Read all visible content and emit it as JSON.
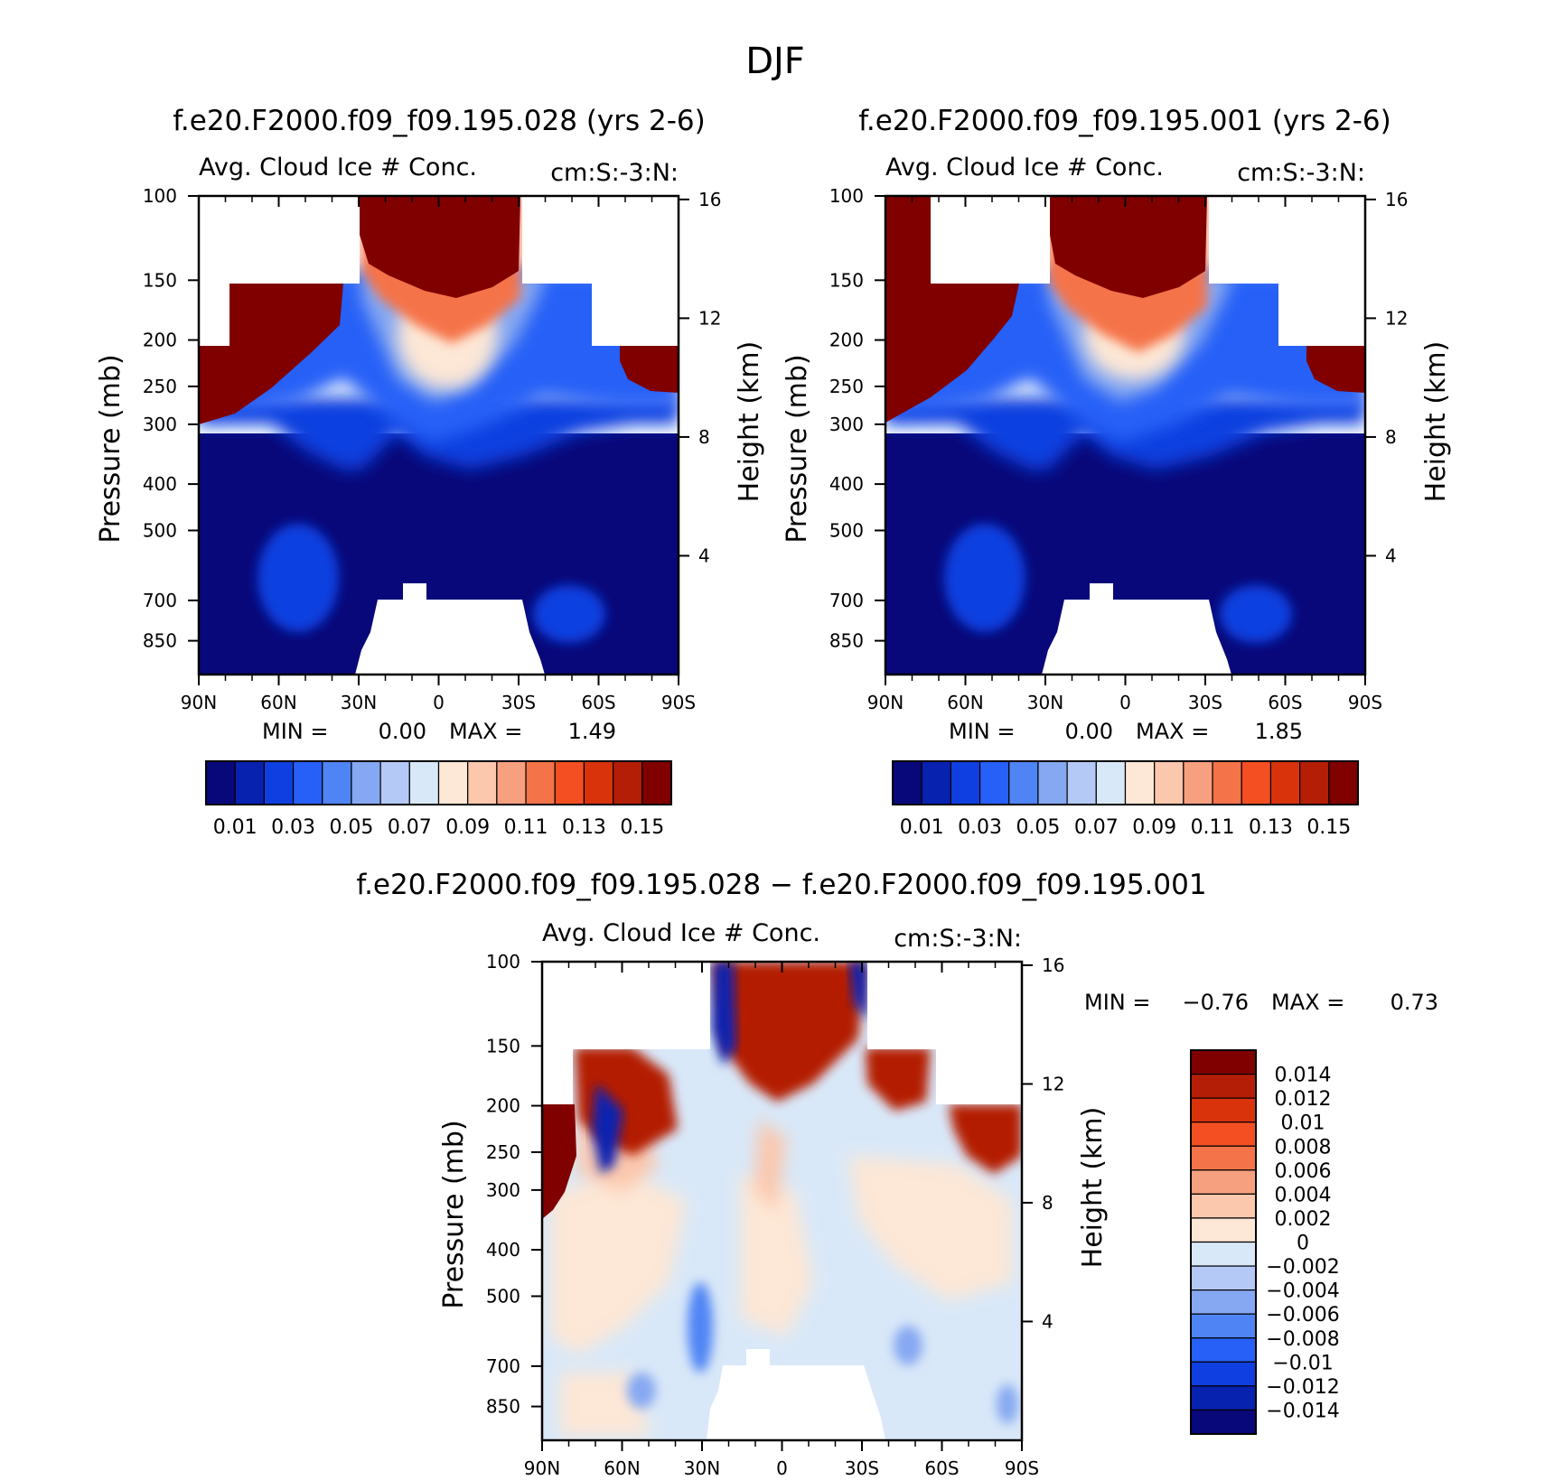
{
  "figure": {
    "title": "DJF"
  },
  "colors": {
    "abs_levels": [
      "#08087a",
      "#0822b0",
      "#0f3fe0",
      "#2760f7",
      "#4f84f5",
      "#86a8f2",
      "#b4c9f5",
      "#d9e8f8",
      "#fde7d6",
      "#fbc7ad",
      "#f7a07f",
      "#f57348",
      "#f44f22",
      "#d9330c",
      "#b41e06",
      "#800000"
    ],
    "diff_levels": [
      "#800000",
      "#b41e06",
      "#d9330c",
      "#f44f22",
      "#f57348",
      "#f7a07f",
      "#fbc7ad",
      "#fde7d6",
      "#d9e8f8",
      "#b4c9f5",
      "#86a8f2",
      "#4f84f5",
      "#2760f7",
      "#0f3fe0",
      "#0822b0",
      "#08087a"
    ]
  },
  "chart_data": [
    {
      "type": "heatmap",
      "title": "f.e20.F2000.f09_f09.195.028 (yrs 2-6)",
      "subtitle_left": "Avg. Cloud Ice # Conc.",
      "subtitle_right": "cm:S:-3:N:",
      "ylabel": "Pressure (mb)",
      "y2label": "Height (km)",
      "x_ticks": [
        "90N",
        "60N",
        "30N",
        "0",
        "30S",
        "60S",
        "90S"
      ],
      "y_ticks": [
        "100",
        "150",
        "200",
        "250",
        "300",
        "400",
        "500",
        "700",
        "850"
      ],
      "y2_ticks": [
        "16",
        "12",
        "8",
        "4"
      ],
      "min_label": "MIN =",
      "min_value": "0.00",
      "max_label": "MAX =",
      "max_value": "1.49",
      "colorbar_labels": [
        "0.01",
        "0.03",
        "0.05",
        "0.07",
        "0.09",
        "0.11",
        "0.13",
        "0.15"
      ],
      "ylim": [
        1000,
        100
      ],
      "xlim": [
        90,
        -90
      ],
      "scale": "log-pressure"
    },
    {
      "type": "heatmap",
      "title": "f.e20.F2000.f09_f09.195.001 (yrs 2-6)",
      "subtitle_left": "Avg. Cloud Ice # Conc.",
      "subtitle_right": "cm:S:-3:N:",
      "ylabel": "Pressure (mb)",
      "y2label": "Height (km)",
      "x_ticks": [
        "90N",
        "60N",
        "30N",
        "0",
        "30S",
        "60S",
        "90S"
      ],
      "y_ticks": [
        "100",
        "150",
        "200",
        "250",
        "300",
        "400",
        "500",
        "700",
        "850"
      ],
      "y2_ticks": [
        "16",
        "12",
        "8",
        "4"
      ],
      "min_label": "MIN =",
      "min_value": "0.00",
      "max_label": "MAX =",
      "max_value": "1.85",
      "colorbar_labels": [
        "0.01",
        "0.03",
        "0.05",
        "0.07",
        "0.09",
        "0.11",
        "0.13",
        "0.15"
      ],
      "ylim": [
        1000,
        100
      ],
      "xlim": [
        90,
        -90
      ],
      "scale": "log-pressure"
    },
    {
      "type": "heatmap",
      "title": "f.e20.F2000.f09_f09.195.028 − f.e20.F2000.f09_f09.195.001",
      "subtitle_left": "Avg. Cloud Ice # Conc.",
      "subtitle_right": "cm:S:-3:N:",
      "ylabel": "Pressure (mb)",
      "y2label": "Height (km)",
      "x_ticks": [
        "90N",
        "60N",
        "30N",
        "0",
        "30S",
        "60S",
        "90S"
      ],
      "y_ticks": [
        "100",
        "150",
        "200",
        "250",
        "300",
        "400",
        "500",
        "700",
        "850"
      ],
      "y2_ticks": [
        "16",
        "12",
        "8",
        "4"
      ],
      "min_label": "MIN =",
      "min_value": "−0.76",
      "max_label": "MAX =",
      "max_value": "0.73",
      "colorbar_labels": [
        "0.014",
        "0.012",
        "0.01",
        "0.008",
        "0.006",
        "0.004",
        "0.002",
        "0",
        "−0.002",
        "−0.004",
        "−0.006",
        "−0.008",
        "−0.01",
        "−0.012",
        "−0.014"
      ],
      "ylim": [
        1000,
        100
      ],
      "xlim": [
        90,
        -90
      ],
      "scale": "log-pressure"
    }
  ]
}
